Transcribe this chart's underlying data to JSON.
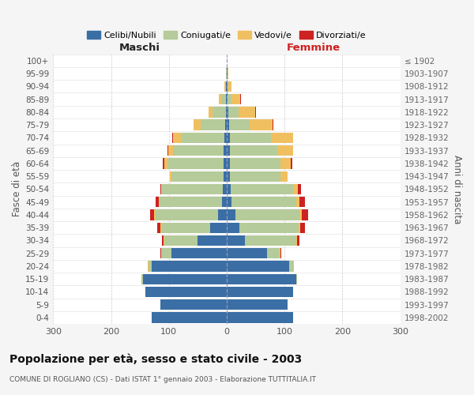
{
  "age_groups": [
    "0-4",
    "5-9",
    "10-14",
    "15-19",
    "20-24",
    "25-29",
    "30-34",
    "35-39",
    "40-44",
    "45-49",
    "50-54",
    "55-59",
    "60-64",
    "65-69",
    "70-74",
    "75-79",
    "80-84",
    "85-89",
    "90-94",
    "95-99",
    "100+"
  ],
  "birth_years": [
    "1998-2002",
    "1993-1997",
    "1988-1992",
    "1983-1987",
    "1978-1982",
    "1973-1977",
    "1968-1972",
    "1963-1967",
    "1958-1962",
    "1953-1957",
    "1948-1952",
    "1943-1947",
    "1938-1942",
    "1933-1937",
    "1928-1932",
    "1923-1927",
    "1918-1922",
    "1913-1917",
    "1908-1912",
    "1903-1907",
    "≤ 1902"
  ],
  "male_celibe": [
    130,
    115,
    140,
    145,
    130,
    95,
    50,
    28,
    15,
    8,
    7,
    5,
    5,
    5,
    4,
    3,
    2,
    1,
    1,
    0,
    0
  ],
  "male_coniugato": [
    0,
    0,
    0,
    2,
    5,
    18,
    58,
    85,
    108,
    108,
    105,
    90,
    98,
    88,
    75,
    42,
    22,
    8,
    2,
    1,
    0
  ],
  "male_vedovo": [
    0,
    0,
    0,
    0,
    1,
    1,
    1,
    2,
    2,
    2,
    2,
    3,
    5,
    8,
    14,
    12,
    8,
    4,
    1,
    0,
    0
  ],
  "male_divorziato": [
    0,
    0,
    0,
    0,
    1,
    1,
    3,
    5,
    8,
    5,
    1,
    0,
    2,
    1,
    1,
    0,
    0,
    0,
    0,
    0,
    0
  ],
  "female_nubile": [
    115,
    105,
    115,
    120,
    108,
    70,
    32,
    22,
    15,
    8,
    7,
    5,
    5,
    5,
    5,
    4,
    3,
    2,
    1,
    1,
    0
  ],
  "female_coniugata": [
    0,
    0,
    0,
    2,
    8,
    22,
    88,
    102,
    110,
    112,
    108,
    88,
    88,
    82,
    72,
    35,
    18,
    6,
    2,
    0,
    0
  ],
  "female_vedova": [
    0,
    0,
    0,
    0,
    0,
    1,
    2,
    3,
    5,
    5,
    8,
    12,
    18,
    28,
    38,
    40,
    28,
    15,
    5,
    2,
    0
  ],
  "female_divorziata": [
    0,
    0,
    0,
    0,
    0,
    1,
    3,
    8,
    10,
    10,
    5,
    0,
    2,
    0,
    0,
    1,
    1,
    1,
    0,
    0,
    0
  ],
  "color_celibe": "#3a6ea5",
  "color_coniugato": "#b5cb99",
  "color_vedovo": "#f0c060",
  "color_divorziato": "#cc2222",
  "xlim": 300,
  "title": "Popolazione per età, sesso e stato civile - 2003",
  "subtitle": "COMUNE DI ROGLIANO (CS) - Dati ISTAT 1° gennaio 2003 - Elaborazione TUTTITALIA.IT",
  "maschi_label": "Maschi",
  "femmine_label": "Femmine",
  "ylabel_left": "Fasce di età",
  "ylabel_right": "Anni di nascita",
  "legend_labels": [
    "Celibi/Nubili",
    "Coniugati/e",
    "Vedovi/e",
    "Divorziati/e"
  ],
  "bg_color": "#f5f5f5",
  "plot_bg": "#ffffff",
  "grid_color": "#cccccc"
}
